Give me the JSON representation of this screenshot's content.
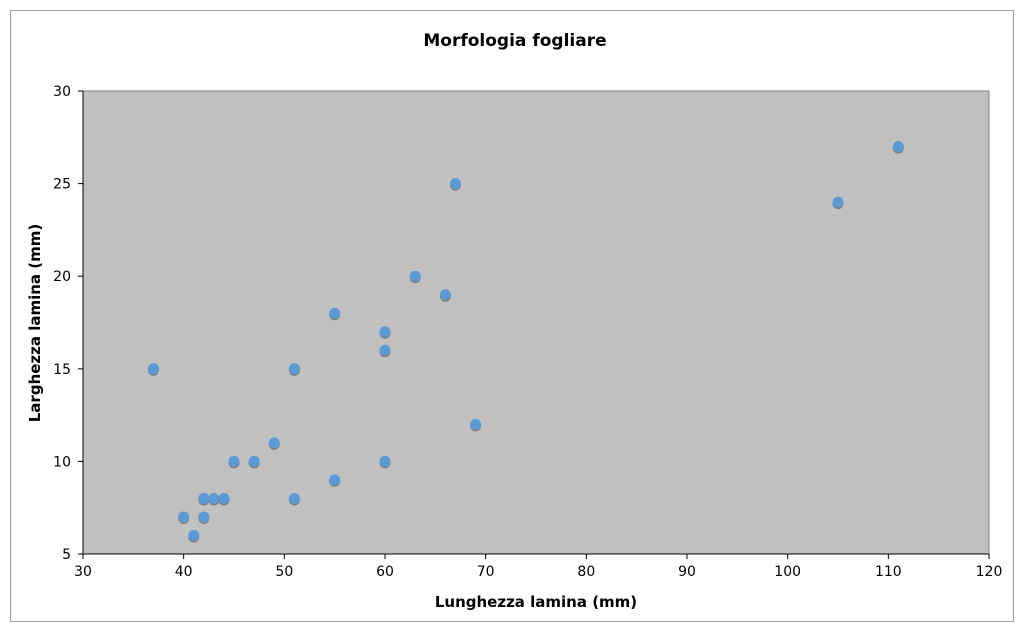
{
  "chart_data": {
    "type": "scatter",
    "title": "Morfologia fogliare",
    "xlabel": "Lunghezza lamina (mm)",
    "ylabel": "Larghezza lamina (mm)",
    "xlim": [
      30,
      120
    ],
    "ylim": [
      5,
      30
    ],
    "x_ticks": [
      30,
      40,
      50,
      60,
      70,
      80,
      90,
      100,
      110,
      120
    ],
    "y_ticks": [
      5,
      10,
      15,
      20,
      25,
      30
    ],
    "grid": false,
    "legend": "none",
    "plot_background": "#c0c0c0",
    "marker_color": "#5b9bd5",
    "marker_shadow": "#7f7f7f",
    "points": [
      {
        "x": 37,
        "y": 15
      },
      {
        "x": 40,
        "y": 7
      },
      {
        "x": 41,
        "y": 6
      },
      {
        "x": 42,
        "y": 8
      },
      {
        "x": 42,
        "y": 7
      },
      {
        "x": 43,
        "y": 8
      },
      {
        "x": 44,
        "y": 8
      },
      {
        "x": 45,
        "y": 10
      },
      {
        "x": 47,
        "y": 10
      },
      {
        "x": 49,
        "y": 11
      },
      {
        "x": 51,
        "y": 15
      },
      {
        "x": 51,
        "y": 8
      },
      {
        "x": 55,
        "y": 18
      },
      {
        "x": 55,
        "y": 9
      },
      {
        "x": 60,
        "y": 17
      },
      {
        "x": 60,
        "y": 16
      },
      {
        "x": 60,
        "y": 10
      },
      {
        "x": 63,
        "y": 20
      },
      {
        "x": 66,
        "y": 19
      },
      {
        "x": 67,
        "y": 25
      },
      {
        "x": 69,
        "y": 12
      },
      {
        "x": 105,
        "y": 24
      },
      {
        "x": 111,
        "y": 27
      }
    ]
  }
}
